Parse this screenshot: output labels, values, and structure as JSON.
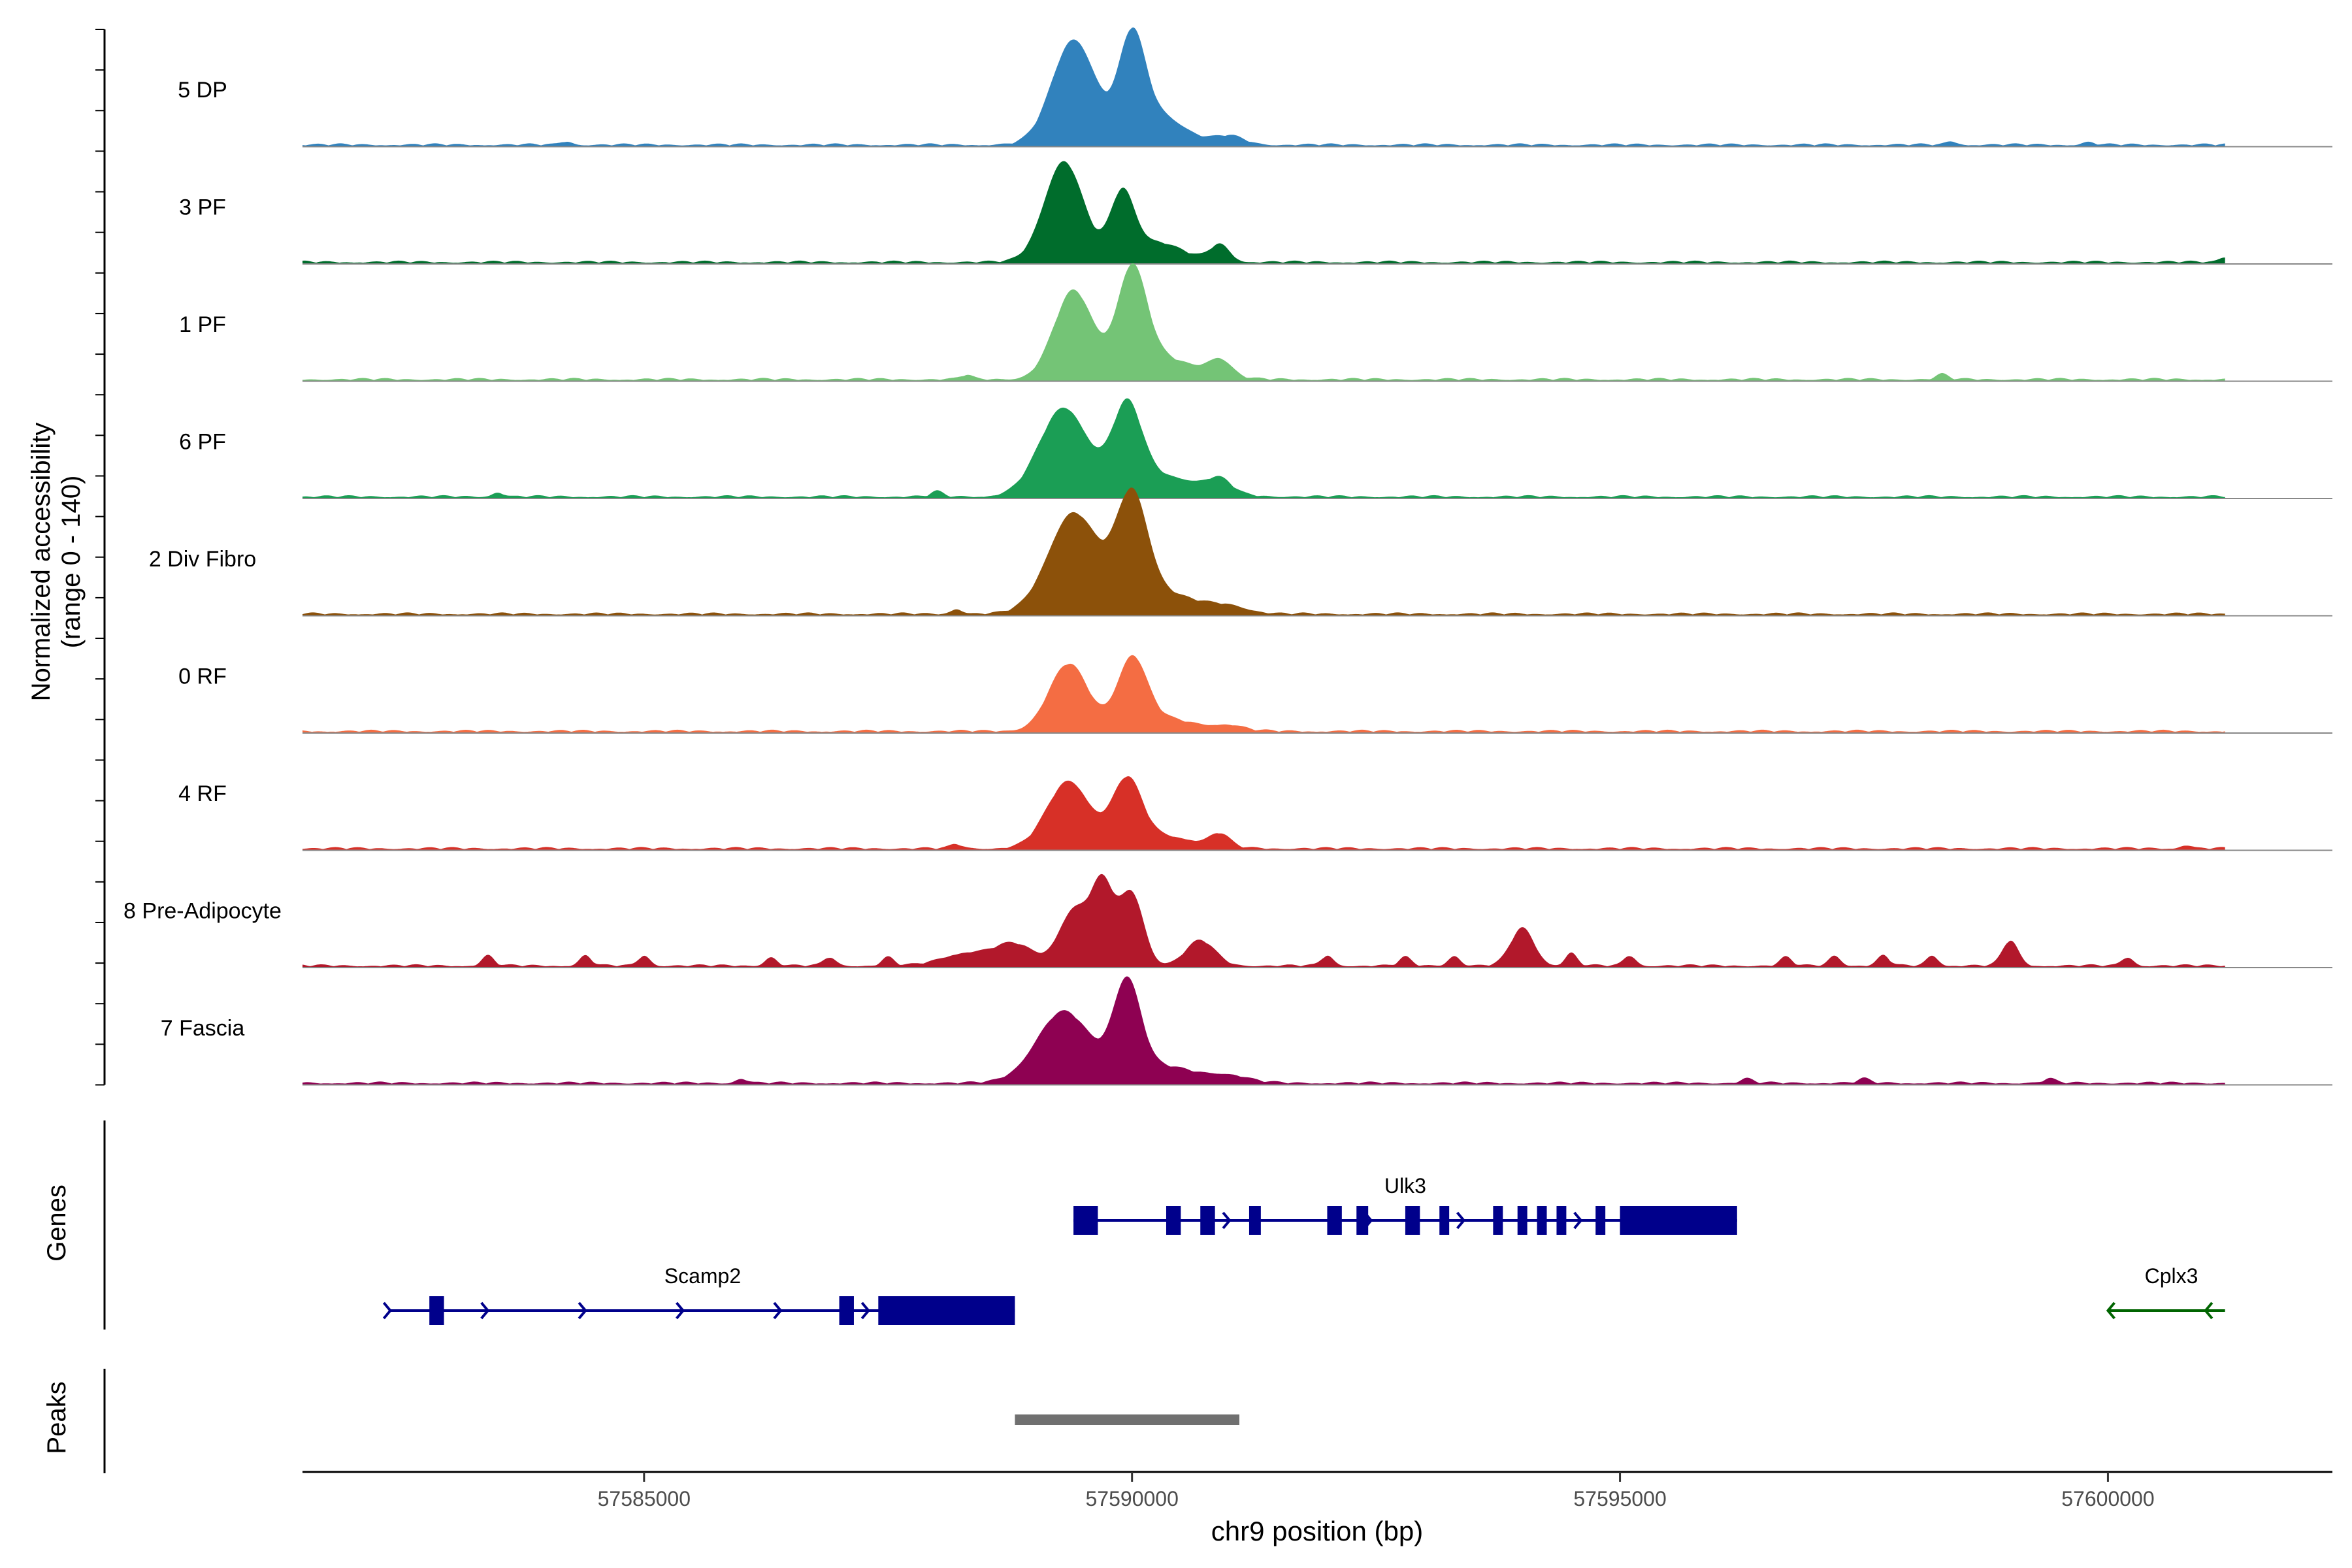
{
  "chart_data": {
    "type": "area",
    "title": "",
    "ylabel_line1": "Normalized accessibility",
    "ylabel_line2": "(range 0 - 140)",
    "ylim": [
      0,
      140
    ],
    "xlabel": "chr9 position (bp)",
    "xlim": [
      57581500,
      57602300
    ],
    "x_ticks": [
      57585000,
      57590000,
      57595000,
      57600000
    ],
    "x_tick_labels": [
      "57585000",
      "57590000",
      "57595000",
      "57600000"
    ],
    "track_range": [
      57581500,
      57601200
    ],
    "tracks": [
      {
        "name": "5 DP",
        "color": "#3182BD",
        "peaks": [
          [
            57589400,
            125,
            220
          ],
          [
            57590000,
            105,
            130
          ],
          [
            57590200,
            40,
            300
          ],
          [
            57591000,
            10,
            150
          ]
        ],
        "noise": [
          [
            57584200,
            4
          ],
          [
            57598400,
            4
          ],
          [
            57599800,
            3
          ]
        ]
      },
      {
        "name": "3 PF",
        "color": "#006D2C",
        "peaks": [
          [
            57589300,
            120,
            200
          ],
          [
            57589900,
            72,
            120
          ],
          [
            57590200,
            25,
            300
          ],
          [
            57590900,
            20,
            100
          ]
        ],
        "noise": [
          [
            57601200,
            6
          ]
        ]
      },
      {
        "name": "1 PF",
        "color": "#74C476",
        "peaks": [
          [
            57589400,
            105,
            200
          ],
          [
            57590000,
            120,
            150
          ],
          [
            57590300,
            25,
            350
          ],
          [
            57590900,
            20,
            120
          ]
        ],
        "noise": [
          [
            57598300,
            6
          ],
          [
            57588300,
            5
          ]
        ]
      },
      {
        "name": "6 PF",
        "color": "#1B9E55",
        "peaks": [
          [
            57589300,
            105,
            250
          ],
          [
            57589950,
            95,
            150
          ],
          [
            57590300,
            25,
            400
          ],
          [
            57590900,
            15,
            120
          ]
        ],
        "noise": [
          [
            57583500,
            5
          ],
          [
            57588000,
            6
          ]
        ]
      },
      {
        "name": "2 Div Fibro",
        "color": "#8C510A",
        "peaks": [
          [
            57589400,
            120,
            260
          ],
          [
            57590000,
            125,
            160
          ],
          [
            57590300,
            25,
            350
          ],
          [
            57591000,
            8,
            200
          ]
        ],
        "noise": [
          [
            57588200,
            6
          ]
        ]
      },
      {
        "name": "0 RF",
        "color": "#F46D43",
        "peaks": [
          [
            57589350,
            80,
            200
          ],
          [
            57590000,
            80,
            150
          ],
          [
            57590300,
            15,
            350
          ],
          [
            57591000,
            6,
            150
          ]
        ],
        "noise": []
      },
      {
        "name": "4 RF",
        "color": "#D73027",
        "peaks": [
          [
            57589350,
            80,
            220
          ],
          [
            57589950,
            75,
            150
          ],
          [
            57590300,
            15,
            350
          ],
          [
            57590900,
            15,
            100
          ]
        ],
        "noise": [
          [
            57588200,
            5
          ],
          [
            57600800,
            4
          ]
        ]
      },
      {
        "name": "8 Pre-Adipocyte",
        "color": "#B2182B",
        "peaks": [
          [
            57589400,
            65,
            150
          ],
          [
            57589700,
            95,
            120
          ],
          [
            57590000,
            85,
            120
          ],
          [
            57588800,
            25,
            200
          ],
          [
            57588300,
            15,
            250
          ],
          [
            57590700,
            30,
            150
          ],
          [
            57594000,
            45,
            120
          ],
          [
            57599000,
            30,
            80
          ]
        ],
        "noise": [
          [
            57583400,
            12
          ],
          [
            57584400,
            12
          ],
          [
            57585000,
            12
          ],
          [
            57586300,
            10
          ],
          [
            57586900,
            10
          ],
          [
            57587500,
            10
          ],
          [
            57592000,
            12
          ],
          [
            57592800,
            10
          ],
          [
            57593300,
            12
          ],
          [
            57594500,
            15
          ],
          [
            57595100,
            12
          ],
          [
            57596700,
            10
          ],
          [
            57597200,
            12
          ],
          [
            57597700,
            12
          ],
          [
            57598200,
            12
          ],
          [
            57600200,
            10
          ]
        ]
      },
      {
        "name": "7 Fascia",
        "color": "#8E0152",
        "peaks": [
          [
            57589300,
            85,
            280
          ],
          [
            57589950,
            110,
            140
          ],
          [
            57590300,
            20,
            350
          ],
          [
            57591000,
            8,
            200
          ]
        ],
        "noise": [
          [
            57586000,
            5
          ],
          [
            57596300,
            5
          ],
          [
            57597500,
            5
          ],
          [
            57599400,
            5
          ]
        ]
      }
    ],
    "genes_label": "Genes",
    "genes": [
      {
        "name": "Ulk3",
        "start": 57589400,
        "end": 57596200,
        "strand": "+",
        "color": "#00008B",
        "exons": [
          [
            57589400,
            57589650
          ],
          [
            57590350,
            57590500
          ],
          [
            57590700,
            57590850
          ],
          [
            57591200,
            57591320
          ],
          [
            57592000,
            57592150
          ],
          [
            57592300,
            57592420
          ],
          [
            57592800,
            57592950
          ],
          [
            57593150,
            57593250
          ],
          [
            57593700,
            57593800
          ],
          [
            57593950,
            57594050
          ],
          [
            57594150,
            57594250
          ],
          [
            57594350,
            57594450
          ],
          [
            57594750,
            57594850
          ],
          [
            57595000,
            57596200
          ]
        ],
        "arrows": [
          57591000,
          57592450,
          57593400,
          57594600
        ]
      },
      {
        "name": "Scamp2",
        "start": 57582400,
        "end": 57588800,
        "strand": "+",
        "color": "#00008B",
        "exons": [
          [
            57582800,
            57582950
          ],
          [
            57587000,
            57587150
          ],
          [
            57587400,
            57588800
          ]
        ],
        "arrows": [
          57582400,
          57583400,
          57584400,
          57585400,
          57586400,
          57587300
        ]
      },
      {
        "name": "Cplx3",
        "start": 57600000,
        "end": 57601200,
        "strand": "-",
        "color": "#006400",
        "exons": [],
        "arrows": [
          57600000,
          57601000
        ]
      }
    ],
    "peaks_label": "Peaks",
    "peak_regions": [
      [
        57588800,
        57591100
      ]
    ],
    "peak_color": "#707070"
  }
}
